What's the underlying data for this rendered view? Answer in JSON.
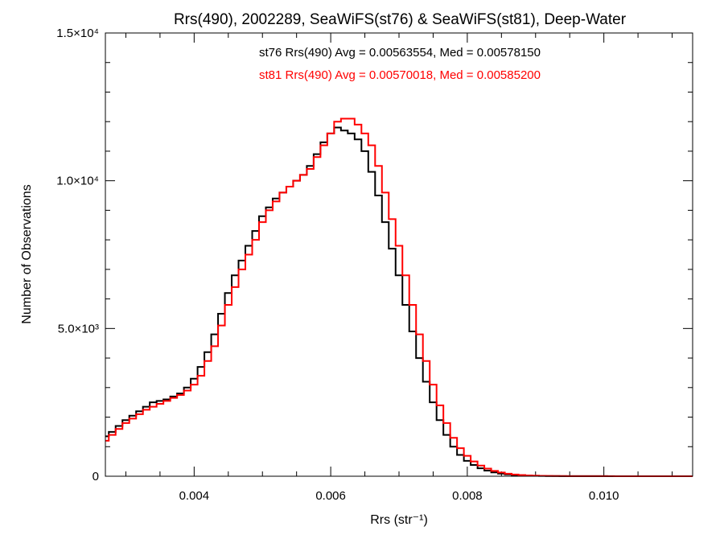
{
  "chart_data": {
    "type": "line",
    "title": "Rrs(490), 2002289, SeaWiFS(st76) & SeaWiFS(st81), Deep-Water",
    "xlabel": "Rrs (str⁻¹)",
    "ylabel": "Number of Observations",
    "xlim": [
      0.0027,
      0.0113
    ],
    "ylim": [
      0,
      15000
    ],
    "xticks": [
      {
        "value": 0.004,
        "label": "0.004"
      },
      {
        "value": 0.006,
        "label": "0.006"
      },
      {
        "value": 0.008,
        "label": "0.008"
      },
      {
        "value": 0.01,
        "label": "0.010"
      }
    ],
    "yticks": [
      {
        "value": 0,
        "label": "0"
      },
      {
        "value": 5000,
        "label": "5.0×10³"
      },
      {
        "value": 10000,
        "label": "1.0×10⁴"
      },
      {
        "value": 15000,
        "label": "1.5×10⁴"
      }
    ],
    "annotations": [
      {
        "text": "st76 Rrs(490) Avg = 0.00563554, Med = 0.00578150",
        "color": "#000000"
      },
      {
        "text": "st81 Rrs(490) Avg = 0.00570018, Med = 0.00585200",
        "color": "#ff0000"
      }
    ],
    "series": [
      {
        "color": "#000000",
        "step": "histogram",
        "x": [
          0.0027,
          0.0028,
          0.0029,
          0.003,
          0.0031,
          0.0032,
          0.0033,
          0.0034,
          0.0035,
          0.0036,
          0.0037,
          0.0038,
          0.0039,
          0.004,
          0.0041,
          0.0042,
          0.0043,
          0.0044,
          0.0045,
          0.0046,
          0.0047,
          0.0048,
          0.0049,
          0.005,
          0.0051,
          0.0052,
          0.0053,
          0.0054,
          0.0055,
          0.0056,
          0.0057,
          0.0058,
          0.0059,
          0.006,
          0.0061,
          0.0062,
          0.0063,
          0.0064,
          0.0065,
          0.0066,
          0.0067,
          0.0068,
          0.0069,
          0.007,
          0.0071,
          0.0072,
          0.0073,
          0.0074,
          0.0075,
          0.0076,
          0.0077,
          0.0078,
          0.0079,
          0.008,
          0.0081,
          0.0082,
          0.0083,
          0.0084,
          0.0085,
          0.0086,
          0.0087,
          0.0088,
          0.0089,
          0.009,
          0.0091,
          0.0092,
          0.0093,
          0.0094,
          0.0095,
          0.0096,
          0.0097,
          0.0098,
          0.0099,
          0.01,
          0.0101,
          0.0102,
          0.0103,
          0.0104,
          0.0105,
          0.0106,
          0.0107,
          0.0108,
          0.0109,
          0.011,
          0.0111,
          0.0112,
          0.0113
        ],
        "y": [
          1350,
          1500,
          1700,
          1900,
          2050,
          2200,
          2350,
          2500,
          2550,
          2600,
          2700,
          2800,
          3000,
          3300,
          3700,
          4200,
          4800,
          5500,
          6200,
          6800,
          7300,
          7800,
          8300,
          8800,
          9100,
          9400,
          9600,
          9800,
          10000,
          10200,
          10500,
          10900,
          11300,
          11600,
          11800,
          11700,
          11600,
          11400,
          11000,
          10300,
          9500,
          8600,
          7700,
          6800,
          5800,
          4900,
          4000,
          3200,
          2500,
          1900,
          1400,
          1000,
          720,
          520,
          380,
          270,
          190,
          130,
          90,
          60,
          40,
          28,
          20,
          14,
          10,
          8,
          6,
          5,
          4,
          3,
          3,
          2,
          2,
          2,
          1,
          1,
          1,
          1,
          1,
          1,
          0,
          0,
          0,
          0,
          0,
          0,
          0
        ]
      },
      {
        "color": "#ff0000",
        "step": "histogram",
        "x": [
          0.0027,
          0.0028,
          0.0029,
          0.003,
          0.0031,
          0.0032,
          0.0033,
          0.0034,
          0.0035,
          0.0036,
          0.0037,
          0.0038,
          0.0039,
          0.004,
          0.0041,
          0.0042,
          0.0043,
          0.0044,
          0.0045,
          0.0046,
          0.0047,
          0.0048,
          0.0049,
          0.005,
          0.0051,
          0.0052,
          0.0053,
          0.0054,
          0.0055,
          0.0056,
          0.0057,
          0.0058,
          0.0059,
          0.006,
          0.0061,
          0.0062,
          0.0063,
          0.0064,
          0.0065,
          0.0066,
          0.0067,
          0.0068,
          0.0069,
          0.007,
          0.0071,
          0.0072,
          0.0073,
          0.0074,
          0.0075,
          0.0076,
          0.0077,
          0.0078,
          0.0079,
          0.008,
          0.0081,
          0.0082,
          0.0083,
          0.0084,
          0.0085,
          0.0086,
          0.0087,
          0.0088,
          0.0089,
          0.009,
          0.0091,
          0.0092,
          0.0093,
          0.0094,
          0.0095,
          0.0096,
          0.0097,
          0.0098,
          0.0099,
          0.01,
          0.0101,
          0.0102,
          0.0103,
          0.0104,
          0.0105,
          0.0106,
          0.0107,
          0.0108,
          0.0109,
          0.011,
          0.0111,
          0.0112,
          0.0113
        ],
        "y": [
          1200,
          1400,
          1600,
          1800,
          1950,
          2100,
          2250,
          2350,
          2450,
          2550,
          2650,
          2750,
          2900,
          3100,
          3400,
          3900,
          4400,
          5100,
          5800,
          6400,
          7000,
          7500,
          8000,
          8600,
          9000,
          9300,
          9600,
          9800,
          10000,
          10200,
          10400,
          10800,
          11200,
          11600,
          12000,
          12100,
          12100,
          11900,
          11600,
          11200,
          10500,
          9600,
          8700,
          7800,
          6800,
          5800,
          4800,
          3900,
          3100,
          2400,
          1800,
          1300,
          950,
          690,
          500,
          360,
          260,
          180,
          125,
          85,
          58,
          40,
          28,
          20,
          14,
          10,
          8,
          6,
          5,
          4,
          3,
          3,
          2,
          2,
          2,
          1,
          1,
          1,
          1,
          1,
          0,
          0,
          0,
          0,
          0,
          0,
          0
        ]
      }
    ]
  }
}
